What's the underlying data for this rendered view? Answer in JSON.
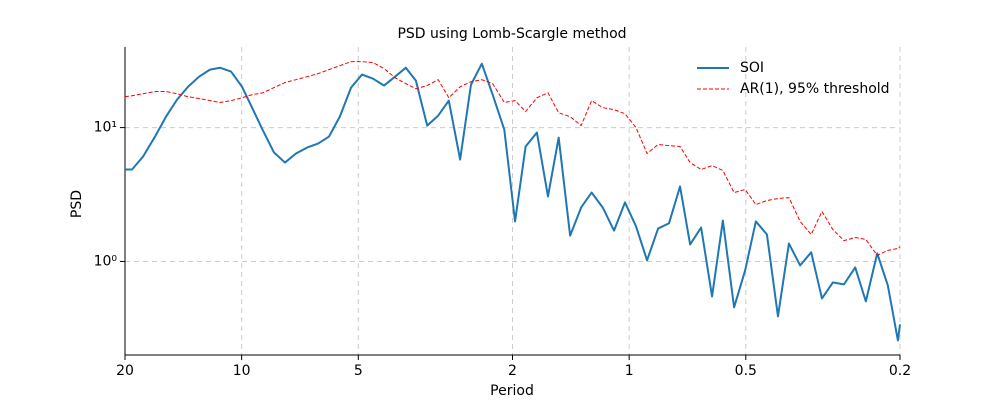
{
  "chart_data": {
    "type": "line",
    "title": "PSD using Lomb-Scargle method",
    "xlabel": "Period",
    "ylabel": "PSD",
    "xscale": "log",
    "yscale": "log",
    "grid": true,
    "legend": "upper right",
    "xlim": [
      20,
      0.2
    ],
    "xticks": [
      20,
      10,
      5,
      2,
      1,
      0.5,
      0.2
    ],
    "ylim": [
      0.2,
      40
    ],
    "yticks": [
      {
        "value": 1,
        "label": "10⁰"
      },
      {
        "value": 10,
        "label": "10¹"
      }
    ],
    "x": [
      20,
      19.18,
      17.97,
      16.73,
      15.67,
      14.68,
      13.75,
      12.88,
      12.07,
      11.37,
      10.65,
      9.98,
      9.4,
      8.81,
      8.25,
      7.73,
      7.24,
      6.78,
      6.35,
      5.95,
      5.58,
      5.22,
      4.89,
      4.58,
      4.29,
      4.02,
      3.77,
      3.55,
      3.32,
      3.11,
      2.92,
      2.73,
      2.56,
      2.4,
      2.25,
      2.1,
      1.97,
      1.85,
      1.73,
      1.62,
      1.52,
      1.42,
      1.33,
      1.25,
      1.17,
      1.094,
      1.025,
      0.96,
      0.899,
      0.842,
      0.789,
      0.739,
      0.696,
      0.652,
      0.611,
      0.573,
      0.536,
      0.502,
      0.471,
      0.441,
      0.413,
      0.387,
      0.362,
      0.339,
      0.318,
      0.298,
      0.279,
      0.261,
      0.245,
      0.229,
      0.215,
      0.2025,
      0.2
    ],
    "series": [
      {
        "name": "SOI",
        "color": "#1f77b4",
        "style": "solid",
        "values": [
          4.86,
          4.86,
          6.07,
          8.57,
          12.08,
          16.18,
          20.2,
          24.0,
          27.1,
          28.0,
          26.2,
          20.2,
          14.1,
          9.5,
          6.51,
          5.48,
          6.4,
          7.09,
          7.6,
          8.57,
          12.08,
          19.9,
          24.9,
          23.2,
          20.6,
          24.0,
          28.0,
          22.4,
          10.35,
          12.29,
          15.9,
          5.77,
          20.9,
          30.0,
          17.6,
          9.66,
          1.99,
          7.22,
          9.18,
          3.06,
          8.42,
          1.56,
          2.53,
          3.27,
          2.53,
          1.7,
          2.76,
          1.83,
          1.02,
          1.76,
          1.93,
          3.63,
          1.34,
          1.79,
          0.548,
          2.02,
          0.454,
          0.857,
          1.99,
          1.59,
          0.389,
          1.36,
          0.934,
          1.17,
          0.529,
          0.697,
          0.674,
          0.902,
          0.503,
          1.15,
          0.662,
          0.257,
          0.339
        ]
      },
      {
        "name": "AR(1), 95% threshold",
        "color": "#ff0000",
        "style": "dashed",
        "values": [
          17.0,
          17.3,
          17.9,
          18.6,
          18.6,
          17.9,
          17.0,
          16.5,
          15.9,
          15.4,
          15.9,
          16.7,
          17.6,
          18.2,
          19.9,
          21.7,
          22.8,
          24.0,
          25.3,
          27.1,
          29.0,
          31.1,
          31.1,
          30.6,
          27.6,
          23.6,
          21.3,
          19.5,
          20.6,
          22.8,
          16.7,
          20.2,
          22.0,
          22.8,
          21.3,
          15.4,
          15.9,
          13.2,
          16.7,
          18.2,
          12.9,
          12.08,
          10.35,
          15.9,
          14.1,
          13.6,
          12.7,
          10.0,
          6.4,
          7.47,
          7.34,
          7.22,
          5.48,
          4.86,
          5.2,
          4.78,
          3.27,
          3.45,
          2.66,
          2.85,
          2.95,
          3.0,
          1.99,
          1.59,
          2.36,
          1.73,
          1.43,
          1.51,
          1.46,
          1.11,
          1.21,
          1.25,
          1.29
        ]
      }
    ]
  }
}
